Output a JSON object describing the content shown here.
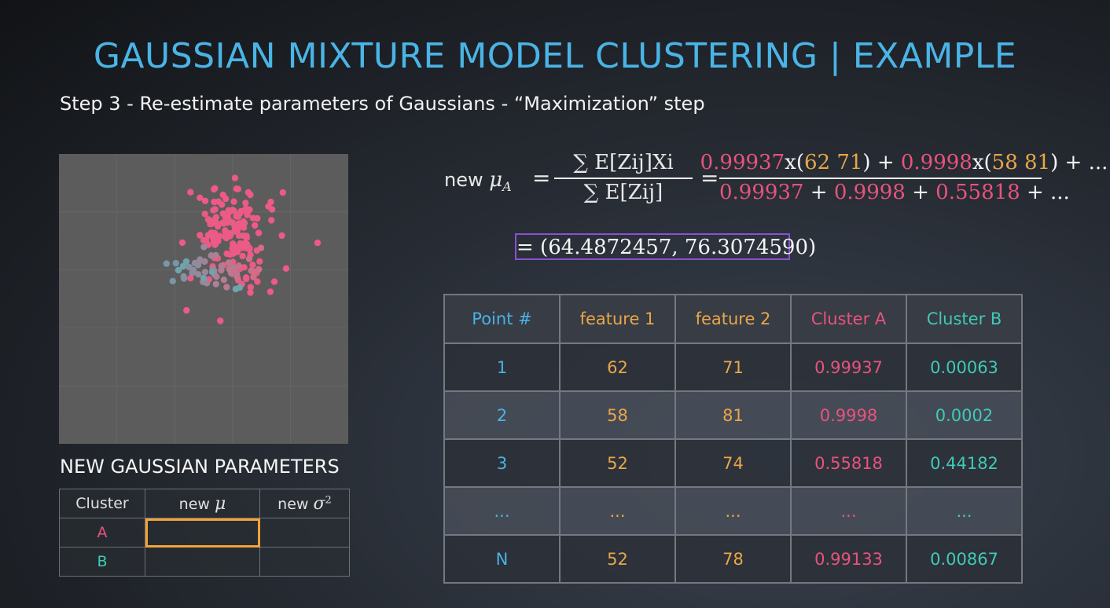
{
  "title": "GAUSSIAN MIXTURE MODEL CLUSTERING | EXAMPLE",
  "subtitle": "Step 3 - Re-estimate parameters of Gaussians - “Maximization” step",
  "formula": {
    "prefix": "new",
    "mu_a": "μ",
    "mu_sub": "A",
    "lhs_numerator": "∑ E[Zij]Xi",
    "lhs_denominator": "∑ E[Zij]",
    "rhs_numerator": [
      {
        "text": "0.99937",
        "color": "pink"
      },
      {
        "text": "x(",
        "color": "white"
      },
      {
        "text": "62 71",
        "color": "orange"
      },
      {
        "text": ") + ",
        "color": "white"
      },
      {
        "text": "0.9998",
        "color": "pink"
      },
      {
        "text": "x(",
        "color": "white"
      },
      {
        "text": "58 81",
        "color": "orange"
      },
      {
        "text": ") + ...",
        "color": "white"
      }
    ],
    "rhs_denominator": [
      {
        "text": "0.99937",
        "color": "pink"
      },
      {
        "text": " + ",
        "color": "white"
      },
      {
        "text": "0.9998",
        "color": "pink"
      },
      {
        "text": " + ",
        "color": "white"
      },
      {
        "text": "0.55818",
        "color": "pink"
      },
      {
        "text": " + ...",
        "color": "white"
      }
    ],
    "result": "= (64.4872457, 76.3074590)"
  },
  "points_table": {
    "headers": [
      {
        "label": "Point #",
        "color": "blue"
      },
      {
        "label": "feature 1",
        "color": "orange"
      },
      {
        "label": "feature 2",
        "color": "orange"
      },
      {
        "label": "Cluster A",
        "color": "pink"
      },
      {
        "label": "Cluster B",
        "color": "teal"
      }
    ],
    "rows": [
      [
        "1",
        "62",
        "71",
        "0.99937",
        "0.00063"
      ],
      [
        "2",
        "58",
        "81",
        "0.9998",
        "0.0002"
      ],
      [
        "3",
        "52",
        "74",
        "0.55818",
        "0.44182"
      ],
      [
        "...",
        "...",
        "...",
        "...",
        "..."
      ],
      [
        "N",
        "52",
        "78",
        "0.99133",
        "0.00867"
      ]
    ]
  },
  "params": {
    "title": "NEW GAUSSIAN PARAMETERS",
    "headers": {
      "cluster": "Cluster",
      "mu": "new",
      "mu_symbol": "μ",
      "sigma": "new",
      "sigma_symbol": "σ",
      "sigma_power": "2"
    },
    "rows": [
      {
        "cluster": "A",
        "mu": "",
        "sigma": ""
      },
      {
        "cluster": "B",
        "mu": "",
        "sigma": ""
      }
    ]
  },
  "colors": {
    "pink": "#e8537c",
    "orange": "#e9a649",
    "teal": "#41c9b6",
    "blue": "#49b2e4",
    "title": "#4ab4e6",
    "highlight": "#f2a33a",
    "result_box": "#8c4fd4"
  }
}
